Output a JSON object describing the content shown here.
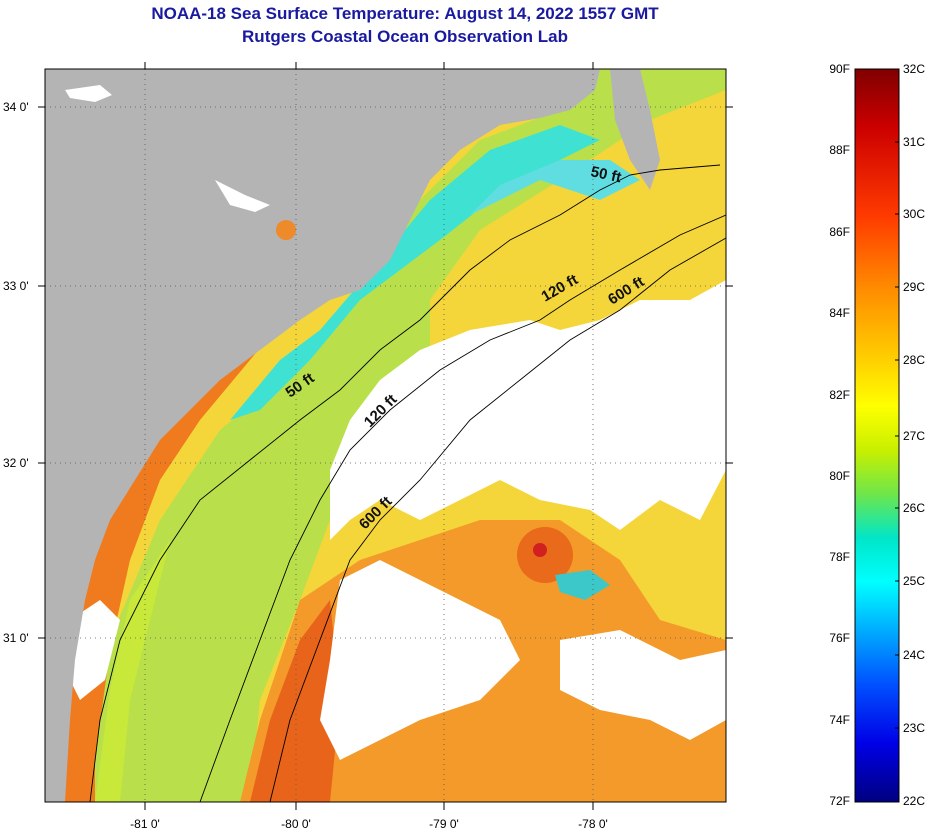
{
  "title": {
    "line1": "NOAA-18 Sea Surface Temperature:  August 14, 2022 1557 GMT",
    "line2": "Rutgers Coastal Ocean Observation Lab"
  },
  "map": {
    "lat_labels": [
      "34 0'",
      "33 0'",
      "32 0'",
      "31 0'"
    ],
    "lon_labels": [
      "-81 0'",
      "-80 0'",
      "-79 0'",
      "-78 0'"
    ],
    "contour_labels": {
      "c50_north": "50 ft",
      "c120_north": "120 ft",
      "c600_north": "600 ft",
      "c50_south": "50 ft",
      "c120_south": "120 ft",
      "c600_south": "600 ft"
    },
    "colors": {
      "land": "#b4b4b4",
      "cloud": "#ffffff",
      "contour": "#000000"
    }
  },
  "colorbar": {
    "fahrenheit": [
      "90F",
      "88F",
      "86F",
      "84F",
      "82F",
      "80F",
      "78F",
      "76F",
      "74F",
      "72F"
    ],
    "celsius": [
      "32C",
      "31C",
      "30C",
      "29C",
      "28C",
      "27C",
      "26C",
      "25C",
      "24C",
      "23C",
      "22C"
    ]
  }
}
